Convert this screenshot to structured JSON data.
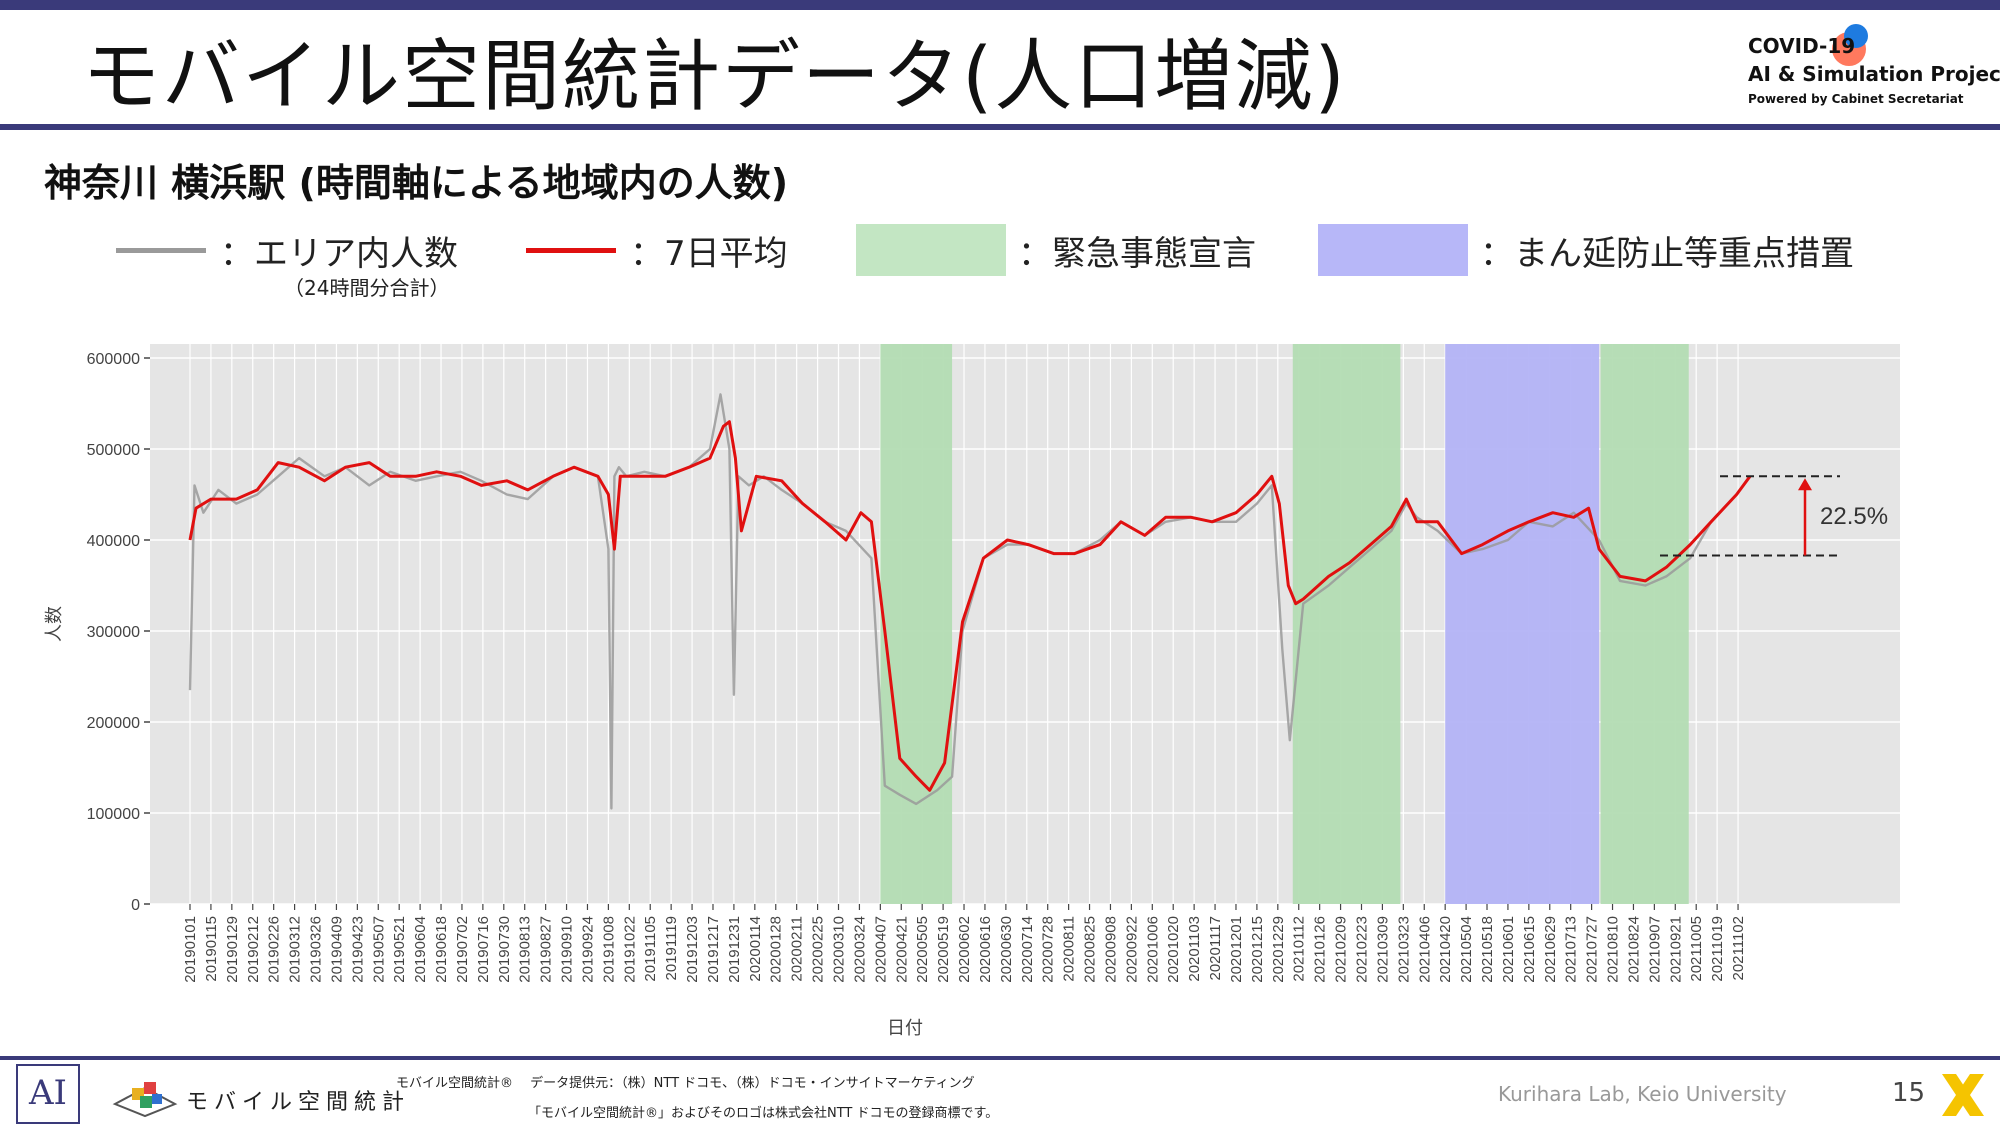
{
  "slide": {
    "title": "モバイル空間統計データ(人口増減)",
    "subtitle": "神奈川 横浜駅 (時間軸による地域内の人数)",
    "page_number": "15",
    "lab": "Kurihara Lab, Keio University"
  },
  "brand": {
    "line1": "COVID-19",
    "line2": "AI & Simulation Project",
    "line3": "Powered by Cabinet Secretariat",
    "ai_mark": "AI",
    "mobile_logo": "モバイル空間統計",
    "credit1": "モバイル空間統計®　 データ提供元：（株）NTT ドコモ、（株）ドコモ・インサイトマーケティング",
    "credit2": "「モバイル空間統計®」およびそのロゴは株式会社NTT ドコモの登録商標です。"
  },
  "legend": {
    "area_label": "：エリア内人数",
    "area_sub": "（24時間分合計）",
    "avg_label": "：7日平均",
    "emergency_label": "：緊急事態宣言",
    "priority_label": "：まん延防止等重点措置"
  },
  "colors": {
    "raw_line": "#9a9a9a",
    "avg_line": "#e01010",
    "emergency": "#b3dcb3",
    "priority": "#b3b3f5",
    "panel": "#e5e5e5",
    "accent": "#3a3a7a"
  },
  "chart_data": {
    "type": "line",
    "xlabel": "日付",
    "ylabel": "人数",
    "ylim": [
      0,
      600000
    ],
    "y_ticks": [
      0,
      100000,
      200000,
      300000,
      400000,
      500000,
      600000
    ],
    "x_ticks": [
      "20190101",
      "20190115",
      "20190129",
      "20190212",
      "20190226",
      "20190312",
      "20190326",
      "20190409",
      "20190423",
      "20190507",
      "20190521",
      "20190604",
      "20190618",
      "20190702",
      "20190716",
      "20190730",
      "20190813",
      "20190827",
      "20190910",
      "20190924",
      "20191008",
      "20191022",
      "20191105",
      "20191119",
      "20191203",
      "20191217",
      "20191231",
      "20200114",
      "20200128",
      "20200211",
      "20200225",
      "20200310",
      "20200324",
      "20200407",
      "20200421",
      "20200505",
      "20200519",
      "20200602",
      "20200616",
      "20200630",
      "20200714",
      "20200728",
      "20200811",
      "20200825",
      "20200908",
      "20200922",
      "20201006",
      "20201020",
      "20201103",
      "20201117",
      "20201201",
      "20201215",
      "20201229",
      "20210112",
      "20210126",
      "20210209",
      "20210223",
      "20210309",
      "20210323",
      "20210406",
      "20210420",
      "20210504",
      "20210518",
      "20210601",
      "20210615",
      "20210629",
      "20210713",
      "20210727",
      "20210810",
      "20210824",
      "20210907",
      "20210921",
      "20211005",
      "20211019",
      "20211102"
    ],
    "x_range": [
      "20190101",
      "20211110"
    ],
    "grid": true,
    "emergency_periods": [
      [
        "20200407",
        "20200525"
      ],
      [
        "20210108",
        "20210321"
      ],
      [
        "20210802",
        "20210930"
      ]
    ],
    "priority_periods": [
      [
        "20210420",
        "20210801"
      ]
    ],
    "annotation": "22.5%",
    "series": [
      {
        "name": "エリア内人数",
        "x": [
          "20190101",
          "20190104",
          "20190110",
          "20190120",
          "20190201",
          "20190215",
          "20190301",
          "20190315",
          "20190401",
          "20190415",
          "20190501",
          "20190515",
          "20190601",
          "20190615",
          "20190701",
          "20190715",
          "20190801",
          "20190815",
          "20190901",
          "20190915",
          "20191001",
          "20191008",
          "20191010",
          "20191012",
          "20191015",
          "20191020",
          "20191101",
          "20191115",
          "20191201",
          "20191215",
          "20191222",
          "20191228",
          "20191231",
          "20200103",
          "20200110",
          "20200120",
          "20200201",
          "20200215",
          "20200301",
          "20200315",
          "20200401",
          "20200410",
          "20200420",
          "20200501",
          "20200515",
          "20200525",
          "20200601",
          "20200615",
          "20200701",
          "20200715",
          "20200801",
          "20200815",
          "20200901",
          "20200915",
          "20201001",
          "20201015",
          "20201101",
          "20201115",
          "20201201",
          "20201215",
          "20201225",
          "20210101",
          "20210106",
          "20210115",
          "20210201",
          "20210215",
          "20210301",
          "20210315",
          "20210325",
          "20210401",
          "20210415",
          "20210501",
          "20210515",
          "20210601",
          "20210615",
          "20210701",
          "20210715",
          "20210801",
          "20210815",
          "20210901",
          "20210915",
          "20211001",
          "20211015",
          "20211101",
          "20211110"
        ],
        "values": [
          235000,
          460000,
          430000,
          455000,
          440000,
          450000,
          470000,
          490000,
          470000,
          480000,
          460000,
          475000,
          465000,
          470000,
          475000,
          465000,
          450000,
          445000,
          470000,
          480000,
          470000,
          390000,
          105000,
          470000,
          480000,
          470000,
          475000,
          470000,
          480000,
          500000,
          560000,
          500000,
          230000,
          470000,
          460000,
          470000,
          455000,
          440000,
          420000,
          410000,
          380000,
          130000,
          120000,
          110000,
          125000,
          140000,
          300000,
          380000,
          395000,
          395000,
          385000,
          385000,
          400000,
          420000,
          405000,
          420000,
          425000,
          420000,
          420000,
          440000,
          460000,
          280000,
          180000,
          330000,
          350000,
          370000,
          390000,
          410000,
          440000,
          425000,
          410000,
          385000,
          390000,
          400000,
          420000,
          415000,
          430000,
          400000,
          355000,
          350000,
          360000,
          380000,
          420000,
          450000,
          470000
        ]
      },
      {
        "name": "7日平均",
        "x": [
          "20190101",
          "20190105",
          "20190115",
          "20190201",
          "20190215",
          "20190301",
          "20190315",
          "20190401",
          "20190415",
          "20190501",
          "20190515",
          "20190601",
          "20190615",
          "20190701",
          "20190715",
          "20190801",
          "20190815",
          "20190901",
          "20190915",
          "20191001",
          "20191008",
          "20191012",
          "20191016",
          "20191101",
          "20191115",
          "20191201",
          "20191215",
          "20191224",
          "20191228",
          "20200101",
          "20200105",
          "20200115",
          "20200201",
          "20200215",
          "20200301",
          "20200315",
          "20200325",
          "20200401",
          "20200410",
          "20200420",
          "20200501",
          "20200510",
          "20200520",
          "20200601",
          "20200615",
          "20200701",
          "20200715",
          "20200801",
          "20200815",
          "20200901",
          "20200915",
          "20201001",
          "20201015",
          "20201101",
          "20201115",
          "20201201",
          "20201215",
          "20201225",
          "20201230",
          "20210105",
          "20210110",
          "20210115",
          "20210201",
          "20210215",
          "20210301",
          "20210315",
          "20210325",
          "20210401",
          "20210415",
          "20210501",
          "20210515",
          "20210601",
          "20210615",
          "20210701",
          "20210715",
          "20210725",
          "20210801",
          "20210815",
          "20210901",
          "20210915",
          "20211001",
          "20211015",
          "20211101",
          "20211110"
        ],
        "values": [
          400000,
          435000,
          445000,
          445000,
          455000,
          485000,
          480000,
          465000,
          480000,
          485000,
          470000,
          470000,
          475000,
          470000,
          460000,
          465000,
          455000,
          470000,
          480000,
          470000,
          450000,
          390000,
          470000,
          470000,
          470000,
          480000,
          490000,
          525000,
          530000,
          490000,
          410000,
          470000,
          465000,
          440000,
          420000,
          400000,
          430000,
          420000,
          300000,
          160000,
          140000,
          125000,
          155000,
          310000,
          380000,
          400000,
          395000,
          385000,
          385000,
          395000,
          420000,
          405000,
          425000,
          425000,
          420000,
          430000,
          450000,
          470000,
          440000,
          350000,
          330000,
          335000,
          360000,
          375000,
          395000,
          415000,
          445000,
          420000,
          420000,
          385000,
          395000,
          410000,
          420000,
          430000,
          425000,
          435000,
          390000,
          360000,
          355000,
          370000,
          395000,
          420000,
          450000,
          470000
        ]
      }
    ]
  }
}
